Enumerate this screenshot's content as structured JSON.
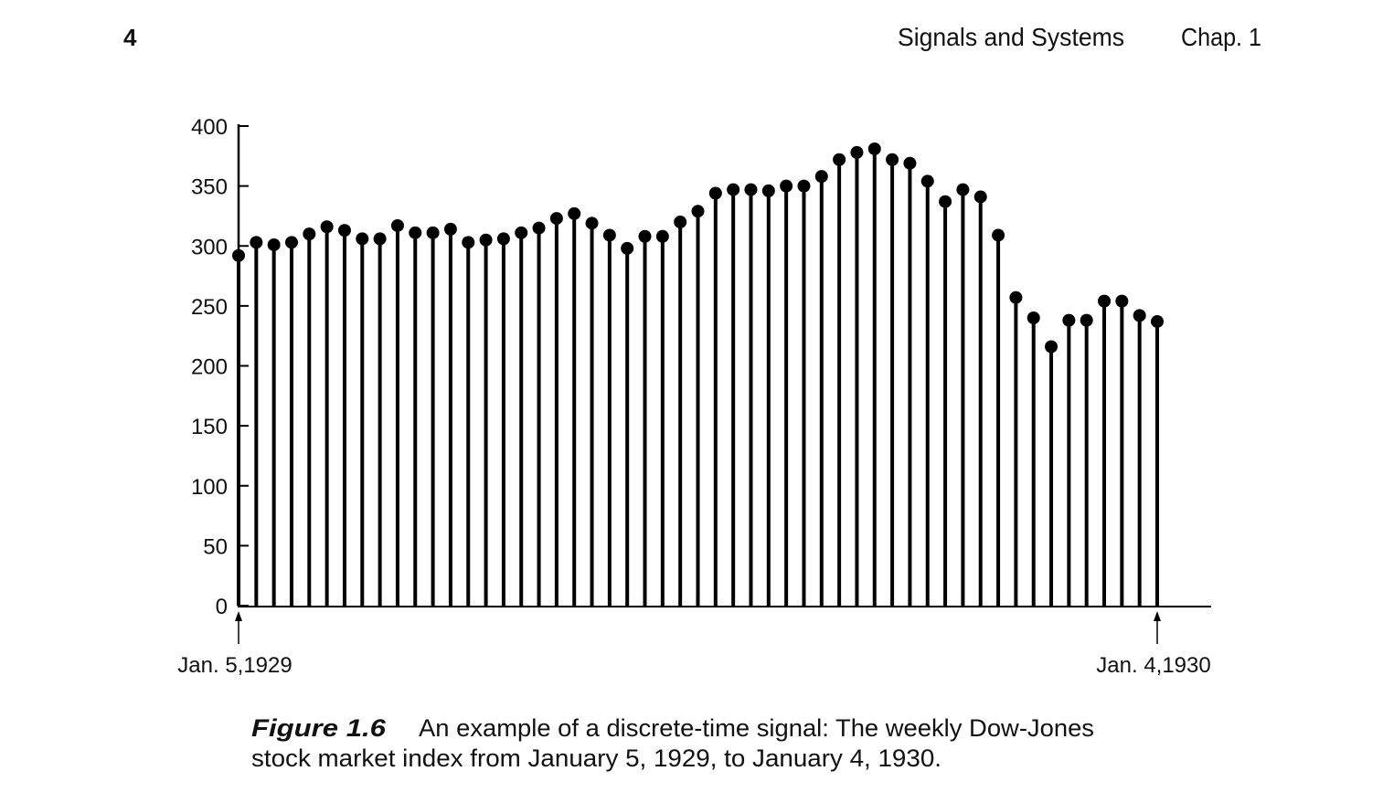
{
  "page_number": "4",
  "running_head": "Signals and Systems",
  "chapter": "Chap. 1",
  "chart_data": {
    "type": "stem",
    "categories": [
      "Jan. 5,1929",
      null,
      null,
      null,
      null,
      null,
      null,
      null,
      null,
      null,
      null,
      null,
      null,
      null,
      null,
      null,
      null,
      null,
      null,
      null,
      null,
      null,
      null,
      null,
      null,
      null,
      null,
      null,
      null,
      null,
      null,
      null,
      null,
      null,
      null,
      null,
      null,
      null,
      null,
      null,
      null,
      null,
      null,
      null,
      null,
      null,
      null,
      null,
      null,
      null,
      null,
      null,
      "Jan. 4,1930"
    ],
    "values": [
      292,
      303,
      301,
      303,
      310,
      316,
      313,
      306,
      306,
      317,
      311,
      311,
      314,
      303,
      305,
      306,
      311,
      315,
      323,
      327,
      319,
      309,
      298,
      308,
      308,
      320,
      329,
      344,
      347,
      347,
      346,
      350,
      350,
      358,
      372,
      378,
      381,
      372,
      369,
      354,
      337,
      347,
      341,
      309,
      257,
      240,
      216,
      238,
      238,
      254,
      254,
      242,
      237
    ],
    "color": "#000000",
    "ylim": [
      0,
      400
    ],
    "yticks": [
      0,
      50,
      100,
      150,
      200,
      250,
      300,
      350,
      400
    ],
    "caption_label": "Figure 1.6",
    "caption": [
      "An example of a discrete-time signal: The weekly Dow-Jones",
      "stock market index from January 5, 1929, to January 4, 1930."
    ]
  }
}
